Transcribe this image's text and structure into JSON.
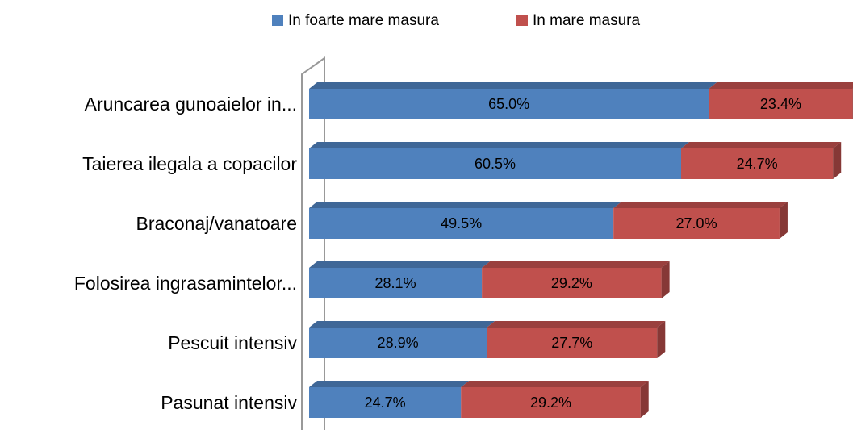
{
  "chart_data": {
    "type": "bar3d_stacked_horizontal",
    "categories": [
      "Aruncarea gunoaielor in...",
      "Taierea ilegala a copacilor",
      "Braconaj/vanatoare",
      "Folosirea ingrasamintelor...",
      "Pescuit intensiv",
      "Pasunat intensiv"
    ],
    "series": [
      {
        "name": "In foarte mare masura",
        "color": "#4f81bd",
        "values": [
          65.0,
          60.5,
          49.5,
          28.1,
          28.9,
          24.7
        ],
        "value_labels": [
          "65.0%",
          "60.5%",
          "49.5%",
          "28.1%",
          "28.9%",
          "24.7%"
        ]
      },
      {
        "name": "In mare masura",
        "color": "#c0504d",
        "values": [
          23.4,
          24.7,
          27.0,
          29.2,
          27.7,
          29.2
        ],
        "value_labels": [
          "23.4%",
          "24.7%",
          "27.0%",
          "29.2%",
          "27.7%",
          "29.2%"
        ]
      }
    ],
    "legend": "top"
  }
}
